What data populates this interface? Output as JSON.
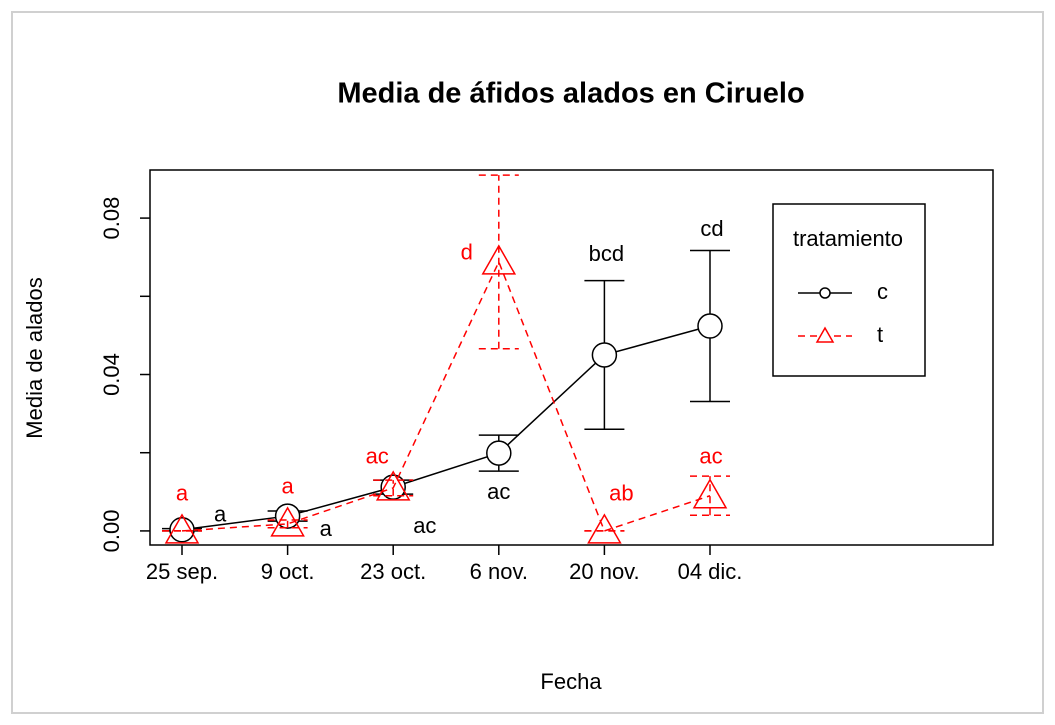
{
  "chart_data": {
    "type": "line",
    "title": "Media de áfidos alados en Ciruelo",
    "x_label": "Fecha",
    "y_label": "Media de alados",
    "categories": [
      "25 sep.",
      "9 oct.",
      "23 oct.",
      "6 nov.",
      "20 nov.",
      "04 dic."
    ],
    "ylim": [
      -0.0036,
      0.0923
    ],
    "yticks": [
      {
        "value": 0,
        "label": "0.00"
      },
      {
        "value": 0.02,
        "label": null
      },
      {
        "value": 0.04,
        "label": "0.04"
      },
      {
        "value": 0.06,
        "label": null
      },
      {
        "value": 0.08,
        "label": "0.08"
      }
    ],
    "legend": {
      "title": "tratamiento",
      "position": "topright"
    },
    "series": [
      {
        "name": "c",
        "color": "#000000",
        "dash": false,
        "marker": "circle",
        "values": [
          0.0003,
          0.0038,
          0.0112,
          0.0199,
          0.045,
          0.0524
        ],
        "errors": [
          0.0003,
          0.0013,
          0.0018,
          0.0046,
          0.019,
          0.0193
        ],
        "letters": [
          "a",
          "a",
          "ac",
          "ac",
          "bcd",
          "cd"
        ]
      },
      {
        "name": "t",
        "color": "#ff0000",
        "dash": true,
        "marker": "triangle",
        "values": [
          0,
          0.0018,
          0.011,
          0.0688,
          0,
          0.009
        ],
        "errors": [
          0,
          0.001,
          0.002,
          0.0222,
          0,
          0.005
        ],
        "letters": [
          "a",
          "a",
          "ac",
          "d",
          "ab",
          "ac"
        ]
      }
    ]
  }
}
